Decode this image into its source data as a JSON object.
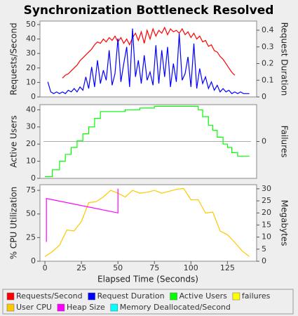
{
  "title": "Synchronization Bottleneck Resolved",
  "x_label": "Elapsed Time (Seconds)",
  "chart_data": [
    {
      "type": "line",
      "xlim": [
        -3.4,
        145
      ],
      "ylabel": "Requests/Second",
      "y2label": "Request Duration",
      "ylim": [
        0,
        52.4
      ],
      "yticks": [
        0,
        10,
        20,
        30,
        40,
        50
      ],
      "y2lim": [
        0,
        0.455
      ],
      "y2ticks": [
        0,
        0.1,
        0.2,
        0.3,
        0.4
      ],
      "series": [
        {
          "name": "Requests/Second",
          "color": "#ff0000",
          "x": [
            12,
            14,
            16,
            18,
            20,
            22,
            24,
            26,
            28,
            30,
            32,
            34,
            36,
            38,
            40,
            42,
            44,
            46,
            48,
            50,
            52,
            54,
            56,
            58,
            60,
            62,
            64,
            66,
            68,
            70,
            72,
            74,
            76,
            78,
            80,
            82,
            84,
            86,
            88,
            90,
            92,
            94,
            96,
            98,
            100,
            102,
            104,
            106,
            108,
            110,
            112,
            114,
            116,
            118,
            120,
            122,
            124,
            126,
            128,
            130
          ],
          "values": [
            13,
            15,
            16,
            18,
            20,
            22,
            25,
            27,
            29,
            31,
            33,
            36,
            38,
            37,
            40,
            38,
            41,
            39,
            42,
            38,
            41,
            37,
            40,
            36,
            41,
            44,
            39,
            45,
            37,
            46,
            40,
            47,
            42,
            46,
            44,
            48,
            43,
            47,
            45,
            46,
            44,
            47,
            43,
            45,
            41,
            44,
            40,
            42,
            38,
            39,
            35,
            36,
            32,
            31,
            28,
            26,
            23,
            20,
            17,
            15
          ]
        },
        {
          "name": "Request Duration",
          "color": "#0000ff",
          "axis": "y2",
          "x": [
            2,
            4,
            6,
            8,
            10,
            12,
            14,
            16,
            18,
            20,
            22,
            24,
            26,
            28,
            30,
            32,
            34,
            36,
            38,
            40,
            42,
            44,
            46,
            48,
            50,
            52,
            54,
            56,
            58,
            60,
            62,
            64,
            66,
            68,
            70,
            72,
            74,
            76,
            78,
            80,
            82,
            84,
            86,
            88,
            90,
            92,
            94,
            96,
            98,
            100,
            102,
            104,
            106,
            108,
            110,
            112,
            114,
            116,
            118,
            120,
            122,
            124,
            126,
            128,
            130,
            132,
            134,
            136,
            138,
            140
          ],
          "values": [
            0.09,
            0.03,
            0.02,
            0.03,
            0.02,
            0.03,
            0.02,
            0.04,
            0.03,
            0.05,
            0.03,
            0.06,
            0.04,
            0.12,
            0.05,
            0.18,
            0.06,
            0.22,
            0.08,
            0.16,
            0.1,
            0.28,
            0.07,
            0.14,
            0.35,
            0.09,
            0.2,
            0.3,
            0.06,
            0.41,
            0.12,
            0.22,
            0.08,
            0.25,
            0.1,
            0.15,
            0.07,
            0.31,
            0.08,
            0.28,
            0.12,
            0.3,
            0.06,
            0.2,
            0.09,
            0.38,
            0.1,
            0.14,
            0.24,
            0.06,
            0.32,
            0.05,
            0.17,
            0.08,
            0.12,
            0.05,
            0.09,
            0.04,
            0.07,
            0.03,
            0.05,
            0.03,
            0.04,
            0.02,
            0.03,
            0.02,
            0.03,
            0.02,
            0.02,
            0.02
          ]
        }
      ]
    },
    {
      "type": "line",
      "xlim": [
        -3.4,
        145
      ],
      "ylabel": "Active Users",
      "y2label": "Failures",
      "ylim": [
        0,
        43
      ],
      "yticks": [
        0,
        10,
        20,
        30,
        40
      ],
      "y2lim": [
        -1,
        1
      ],
      "y2ticks": [
        0
      ],
      "y2grid": true,
      "series": [
        {
          "name": "Active Users",
          "color": "#00ff00",
          "x": [
            0,
            5,
            5,
            10,
            10,
            14,
            14,
            18,
            18,
            22,
            22,
            26,
            26,
            30,
            30,
            34,
            34,
            38,
            38,
            55,
            55,
            65,
            65,
            75,
            75,
            105,
            105,
            108,
            108,
            112,
            112,
            115,
            115,
            118,
            118,
            122,
            122,
            125,
            125,
            128,
            128,
            132,
            132,
            140
          ],
          "values": [
            1,
            1,
            5,
            5,
            10,
            10,
            14,
            14,
            18,
            18,
            22,
            22,
            26,
            26,
            30,
            30,
            35,
            35,
            39,
            39,
            40,
            40,
            41,
            41,
            42,
            42,
            40,
            40,
            36,
            36,
            31,
            31,
            28,
            28,
            24,
            24,
            20,
            20,
            18,
            18,
            15,
            15,
            13,
            13
          ]
        },
        {
          "name": "failures",
          "color": "#ffff00",
          "axis": "y2",
          "x": [],
          "values": []
        }
      ]
    },
    {
      "type": "line",
      "xlim": [
        -3.4,
        145
      ],
      "xticks": [
        0,
        25,
        50,
        75,
        100,
        125
      ],
      "ylabel": "% CPU Utilization",
      "y2label": "Megabytes",
      "ylim": [
        0,
        81
      ],
      "yticks": [
        0,
        25,
        50,
        75
      ],
      "y2lim": [
        0,
        31.7
      ],
      "y2ticks": [
        0,
        5,
        10,
        15,
        20,
        25,
        30
      ],
      "series": [
        {
          "name": "User CPU",
          "color": "#ffc800",
          "x": [
            0,
            5,
            10,
            15,
            20,
            25,
            30,
            35,
            40,
            45,
            50,
            55,
            60,
            65,
            70,
            75,
            80,
            85,
            90,
            95,
            100,
            105,
            110,
            115,
            120,
            125,
            130,
            135,
            140
          ],
          "values": [
            5,
            10,
            17,
            33,
            32,
            42,
            62,
            63,
            68,
            75,
            72,
            68,
            75,
            72,
            73,
            75,
            72,
            74,
            76,
            77,
            65,
            65,
            51,
            52,
            32,
            28,
            20,
            11,
            5
          ]
        },
        {
          "name": "Heap Size",
          "color": "#ff00ff",
          "axis": "y2",
          "x": [
            1,
            1,
            50,
            50
          ],
          "values": [
            8,
            26,
            20,
            30
          ]
        },
        {
          "name": "Memory Deallocated/Second",
          "color": "#00ffff",
          "axis": "y2",
          "x": [],
          "values": []
        }
      ]
    }
  ]
}
